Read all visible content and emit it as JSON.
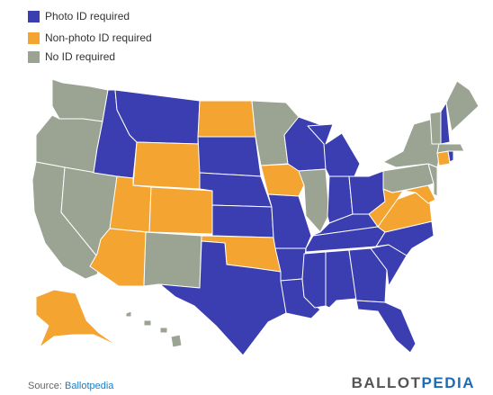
{
  "legend": [
    {
      "label": "Photo ID required",
      "color": "#3a3eb0"
    },
    {
      "label": "Non-photo ID required",
      "color": "#f4a431"
    },
    {
      "label": "No ID required",
      "color": "#9ba492"
    }
  ],
  "source": {
    "label": "Source:",
    "link": "Ballotpedia"
  },
  "logo": {
    "first": "BALLOT",
    "second": "PEDIA"
  }
}
